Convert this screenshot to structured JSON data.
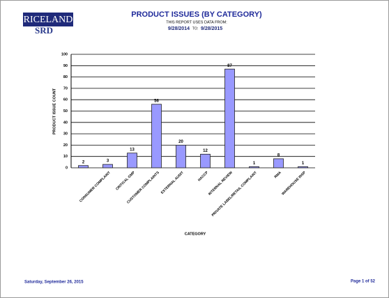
{
  "header": {
    "logo": "RICELAND",
    "unit": "SRD",
    "note": "THIS REPORT USES DATA FROM:",
    "date_from": "9/28/2014",
    "to_label": "TO:",
    "date_to": "9/28/2015"
  },
  "chart_data": {
    "type": "bar",
    "title": "PRODUCT ISSUES (BY CATEGORY)",
    "x_label": "CATEGORY",
    "y_label": "PRODUCT ISSUE COUNT",
    "categories": [
      null,
      "CONSUMER COMPLAINT",
      "CRITICAL GMP",
      "CUSTOMER COMPLAINTS",
      "EXTERNAL AUDIT",
      "HACCP",
      "INTERNAL REVIEW",
      "PRIVATE LABEL/RETAIL COMPLAINT",
      "RMA",
      "WAREHOUSE INSP"
    ],
    "values": [
      2,
      3,
      13,
      56,
      20,
      12,
      87,
      1,
      8,
      1
    ],
    "color": "#9999ff",
    "ylim": [
      0,
      100
    ],
    "yticks": [
      0,
      10,
      20,
      30,
      40,
      50,
      60,
      70,
      80,
      90,
      100
    ],
    "grid": true
  },
  "footer": {
    "date": "Saturday, September 26, 2015",
    "page": "Page 1 of 52"
  }
}
